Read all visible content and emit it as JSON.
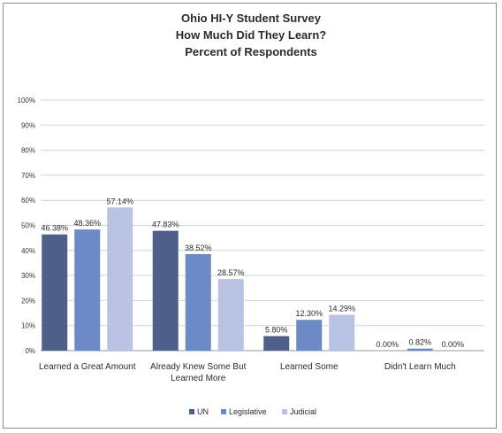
{
  "chart_data": {
    "type": "bar",
    "title": [
      "Ohio HI-Y Student Survey",
      "How Much Did They Learn?",
      "Percent of Respondents"
    ],
    "categories": [
      [
        "Learned a Great Amount"
      ],
      [
        "Already Knew Some But",
        "Learned More"
      ],
      [
        "Learned Some"
      ],
      [
        "Didn't Learn Much"
      ]
    ],
    "series": [
      {
        "name": "UN",
        "values": [
          46.38,
          47.83,
          5.8,
          0.0
        ],
        "labels": [
          "46.38%",
          "47.83%",
          "5.80%",
          "0.00%"
        ],
        "color": "#4e6089"
      },
      {
        "name": "Legislative",
        "values": [
          48.36,
          38.52,
          12.3,
          0.82
        ],
        "labels": [
          "48.36%",
          "38.52%",
          "12.30%",
          "0.82%"
        ],
        "color": "#6c8ac5"
      },
      {
        "name": "Judicial",
        "values": [
          57.14,
          28.57,
          14.29,
          0.0
        ],
        "labels": [
          "57.14%",
          "28.57%",
          "14.29%",
          "0.00%"
        ],
        "color": "#b9c3e3"
      }
    ],
    "ylim": [
      0,
      100
    ],
    "ytick_labels": [
      "0%",
      "10%",
      "20%",
      "30%",
      "40%",
      "50%",
      "60%",
      "70%",
      "80%",
      "90%",
      "100%"
    ],
    "grid": true,
    "legend": "bottom-center"
  }
}
